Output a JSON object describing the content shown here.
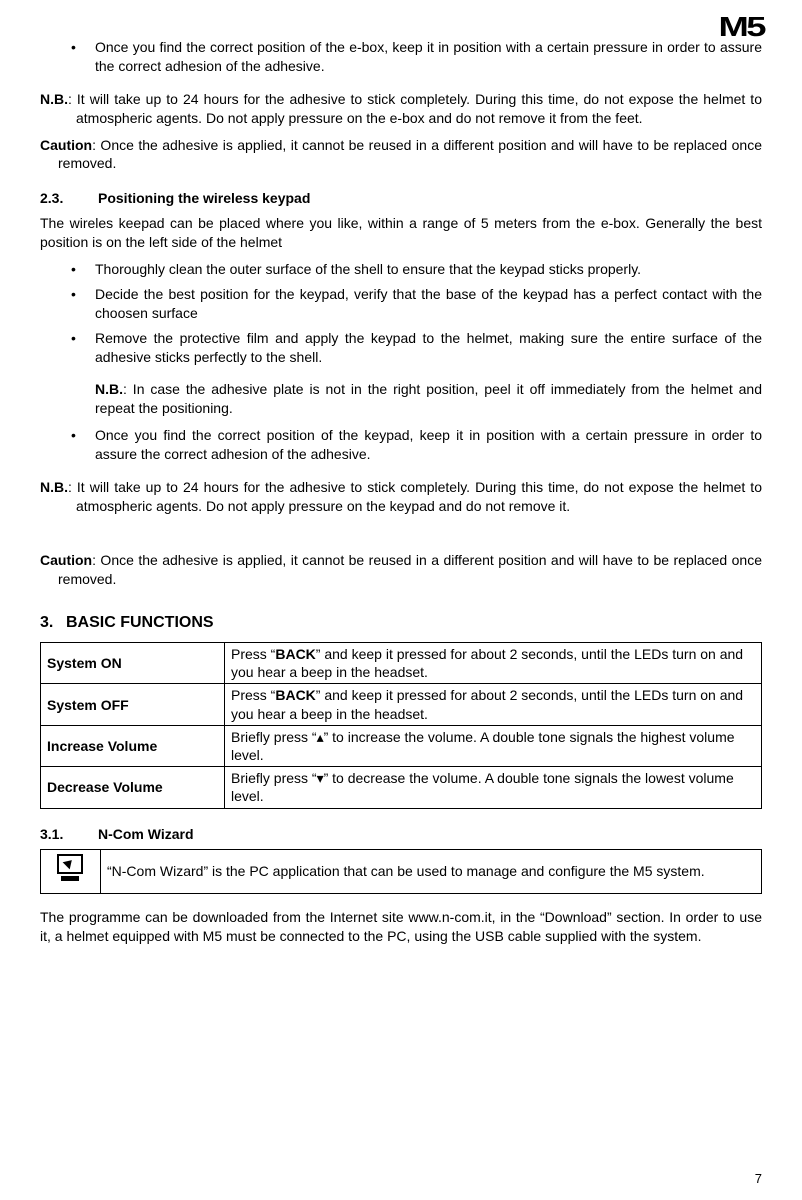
{
  "header": {
    "logo": "M5"
  },
  "top_bullet": "Once you find the correct position of the e-box, keep it in position with a certain pressure in order to assure the correct adhesion of the adhesive.",
  "nb1": {
    "lead": "N.B.",
    "text": ": It will take up to 24 hours for the adhesive to stick completely. During this time, do not expose the helmet to atmospheric agents. Do not apply pressure on the e-box and do not remove it from the feet."
  },
  "caution1": {
    "lead": "Caution",
    "text": ": Once the adhesive is applied, it cannot be reused in a different position and will have to be replaced once removed."
  },
  "sec23": {
    "num": "2.3.",
    "title": "Positioning the wireless keypad"
  },
  "sec23_intro": "The wireles keepad can be placed where you like, within a range of 5 meters from the e-box. Generally the best position is on the left side of the helmet",
  "sec23_bullets": [
    "Thoroughly clean the outer surface of the shell to ensure that the keypad sticks properly.",
    "Decide the best position for the keypad, verify that the base of the keypad has a perfect contact with the choosen surface",
    "Remove the protective film and apply the keypad to the helmet, making sure the entire surface of the adhesive sticks perfectly to the shell."
  ],
  "sec23_sub_nb": {
    "lead": "N.B.",
    "text": ": In case the adhesive plate is not in the right position, peel it off immediately from the helmet and repeat the positioning."
  },
  "sec23_bullet4": "Once you find the correct position of the keypad, keep it in position with a certain pressure in order to assure the correct adhesion of the adhesive.",
  "nb2": {
    "lead": "N.B.",
    "text": ": It will take up to 24 hours for the adhesive to stick completely. During this time, do not expose the helmet to atmospheric agents. Do not apply pressure on the keypad and do not remove it."
  },
  "caution2": {
    "lead": "Caution",
    "text": ": Once the adhesive is applied, it cannot be reused in a different position and will have to be replaced once removed."
  },
  "sec3": {
    "num": "3.",
    "title": "BASIC FUNCTIONS"
  },
  "func_table": [
    {
      "label": "System ON",
      "desc_pre": "Press “",
      "desc_key": "BACK",
      "desc_post": "” and keep it pressed for about 2 seconds, until the LEDs turn on and you hear a beep in the headset."
    },
    {
      "label": "System OFF",
      "desc_pre": "Press “",
      "desc_key": "BACK",
      "desc_post": "” and keep it pressed for about 2 seconds, until the LEDs turn on and you hear a beep in the headset."
    },
    {
      "label": "Increase Volume",
      "desc_pre": "Briefly press “",
      "desc_key": "▴",
      "desc_post": "” to increase the volume. A double tone signals the highest volume level."
    },
    {
      "label": "Decrease Volume",
      "desc_pre": "Briefly press “",
      "desc_key": "▾",
      "desc_post": "” to decrease the volume. A double tone signals the lowest volume level."
    }
  ],
  "sec31": {
    "num": "3.1.",
    "title": "N-Com Wizard"
  },
  "wiz_text": "“N-Com Wizard” is the PC application that can be used to manage and configure the M5 system.",
  "download_text": "The programme can be downloaded from the Internet site www.n-com.it, in the “Download” section. In order to use it, a helmet equipped with M5 must be connected to the PC, using the USB cable supplied with the system.",
  "page_number": "7"
}
